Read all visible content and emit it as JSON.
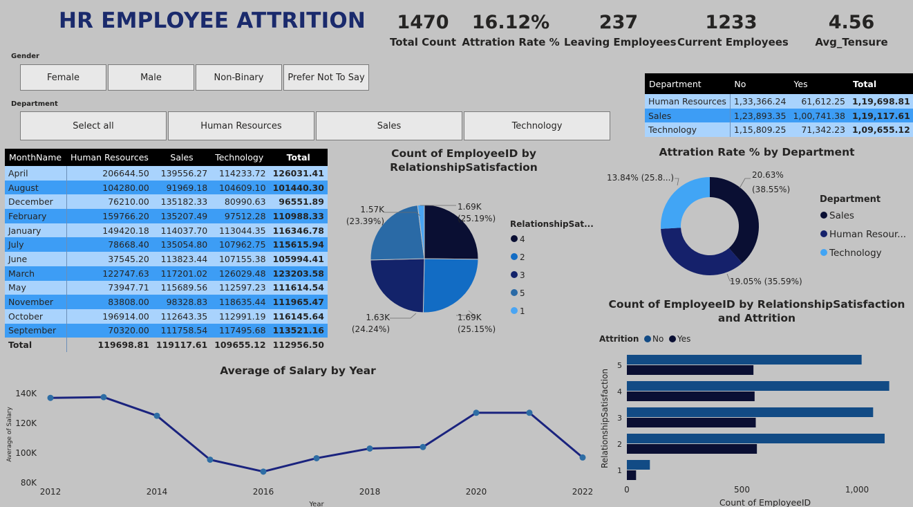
{
  "header": {
    "title": "HR EMPLOYEE ATTRITION"
  },
  "kpis": [
    {
      "value": "1470",
      "label": "Total Count"
    },
    {
      "value": "16.12%",
      "label": "Attration Rate %"
    },
    {
      "value": "237",
      "label": "Leaving Employees"
    },
    {
      "value": "1233",
      "label": "Current Employees"
    },
    {
      "value": "4.56",
      "label": "Avg_Tensure"
    }
  ],
  "gender_slicer": {
    "label": "Gender",
    "options": [
      "Female",
      "Male",
      "Non-Binary",
      "Prefer Not To Say"
    ]
  },
  "department_slicer": {
    "label": "Department",
    "options": [
      "Select all",
      "Human Resources",
      "Sales",
      "Technology"
    ]
  },
  "month_table": {
    "headers": [
      "MonthName",
      "Human Resources",
      "Sales",
      "Technology",
      "Total"
    ],
    "rows": [
      [
        "April",
        "206644.50",
        "139556.27",
        "114233.72",
        "126031.41"
      ],
      [
        "August",
        "104280.00",
        "91969.18",
        "104609.10",
        "101440.30"
      ],
      [
        "December",
        "76210.00",
        "135182.33",
        "80990.63",
        "96551.89"
      ],
      [
        "February",
        "159766.20",
        "135207.49",
        "97512.28",
        "110988.33"
      ],
      [
        "January",
        "149420.18",
        "114037.70",
        "113044.35",
        "116346.78"
      ],
      [
        "July",
        "78668.40",
        "135054.80",
        "107962.75",
        "115615.94"
      ],
      [
        "June",
        "37545.20",
        "113823.44",
        "107155.38",
        "105994.41"
      ],
      [
        "March",
        "122747.63",
        "117201.02",
        "126029.48",
        "123203.58"
      ],
      [
        "May",
        "73947.71",
        "115689.56",
        "112597.23",
        "111614.54"
      ],
      [
        "November",
        "83808.00",
        "98328.83",
        "118635.44",
        "111965.47"
      ],
      [
        "October",
        "196914.00",
        "112643.35",
        "112991.19",
        "116145.64"
      ],
      [
        "September",
        "70320.00",
        "111758.54",
        "117495.68",
        "113521.16"
      ]
    ],
    "total": [
      "Total",
      "119698.81",
      "119117.61",
      "109655.12",
      "112956.50"
    ]
  },
  "dept_table": {
    "headers": [
      "Department",
      "No",
      "Yes",
      "Total"
    ],
    "rows": [
      [
        "Human Resources",
        "1,33,366.24",
        "61,612.25",
        "1,19,698.81"
      ],
      [
        "Sales",
        "1,23,893.35",
        "1,00,741.38",
        "1,19,117.61"
      ],
      [
        "Technology",
        "1,15,809.25",
        "71,342.23",
        "1,09,655.12"
      ]
    ]
  },
  "colors": {
    "c4": "#0a0f33",
    "c2": "#126cc4",
    "c3": "#13236a",
    "c5": "#2a6aa6",
    "c1": "#4aa5f3",
    "sales": "#0a0f33",
    "hr": "#15216b",
    "tech": "#41a5f5",
    "no": "#124b85",
    "yes": "#0a0f33",
    "line": "#1a237e"
  },
  "chart_data": [
    {
      "type": "pie",
      "title": "Count of EmployeeID by RelationshipSatisfaction",
      "legend_title": "RelationshipSat...",
      "legend_position": "right",
      "slices": [
        {
          "name": "4",
          "value": 1690,
          "label": "1.69K",
          "pct": "(25.19%)",
          "color": "#0a0f33"
        },
        {
          "name": "2",
          "value": 1690,
          "label": "1.69K",
          "pct": "(25.15%)",
          "color": "#126cc4"
        },
        {
          "name": "3",
          "value": 1630,
          "label": "1.63K",
          "pct": "(24.24%)",
          "color": "#13236a"
        },
        {
          "name": "5",
          "value": 1570,
          "label": "1.57K",
          "pct": "(23.39%)",
          "color": "#2a6aa6"
        },
        {
          "name": "1",
          "value": 135,
          "color": "#4aa5f3"
        }
      ]
    },
    {
      "type": "pie",
      "title": "Attration Rate % by Department",
      "legend_title": "Department",
      "legend_position": "right",
      "slices": [
        {
          "name": "Sales",
          "value": 38.55,
          "label": "20.63%",
          "pct": "(38.55%)",
          "color": "#0a0f33"
        },
        {
          "name": "Human Resour...",
          "value": 35.59,
          "label": "19.05% (35.59%)",
          "color": "#15216b"
        },
        {
          "name": "Technology",
          "value": 25.86,
          "label": "13.84% (25.8...)",
          "color": "#41a5f5"
        }
      ]
    },
    {
      "type": "line",
      "title": "Average of Salary by Year",
      "xlabel": "Year",
      "ylabel": "Average of Salary",
      "x": [
        2012,
        2013,
        2014,
        2015,
        2016,
        2017,
        2018,
        2019,
        2020,
        2021,
        2022
      ],
      "values": [
        137000,
        137500,
        125000,
        95500,
        87500,
        96500,
        103000,
        104000,
        127000,
        127000,
        97000
      ],
      "ylim": [
        80000,
        145000
      ],
      "yticks": [
        "80K",
        "100K",
        "120K",
        "140K"
      ],
      "xticks": [
        "2012",
        "2014",
        "2016",
        "2018",
        "2020",
        "2022"
      ]
    },
    {
      "type": "bar",
      "orientation": "horizontal",
      "title": "Count of EmployeeID by RelationshipSatisfaction and Attrition",
      "xlabel": "Count of EmployeeID",
      "ylabel": "RelationshipSatisfaction",
      "legend_title": "Attrition",
      "legend_position": "top-left",
      "categories": [
        "5",
        "4",
        "3",
        "2",
        "1"
      ],
      "series": [
        {
          "name": "No",
          "values": [
            1020,
            1140,
            1070,
            1120,
            100
          ]
        },
        {
          "name": "Yes",
          "values": [
            550,
            555,
            560,
            565,
            40
          ]
        }
      ],
      "xlim": [
        0,
        1250
      ],
      "xticks": [
        "0",
        "500",
        "1,000"
      ]
    }
  ]
}
